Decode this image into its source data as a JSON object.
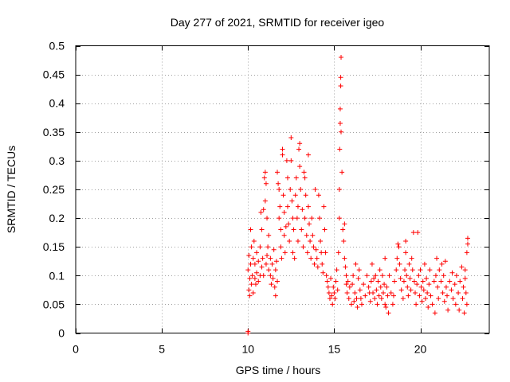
{
  "chart_data": {
    "type": "scatter",
    "title": "Day 277 of 2021, SRMTID for receiver igeo",
    "xlabel": "GPS time / hours",
    "ylabel": "SRMTID / TECUs",
    "xlim": [
      0,
      24
    ],
    "ylim": [
      0,
      0.5
    ],
    "xticks": [
      0,
      5,
      10,
      15,
      20
    ],
    "xtick_labels": [
      "0",
      "5",
      "10",
      "15",
      "20"
    ],
    "yticks": [
      0,
      0.05,
      0.1,
      0.15,
      0.2,
      0.25,
      0.3,
      0.35,
      0.4,
      0.45,
      0.5
    ],
    "ytick_labels": [
      "0",
      "0.05",
      "0.1",
      "0.15",
      "0.2",
      "0.25",
      "0.3",
      "0.35",
      "0.4",
      "0.45",
      "0.5"
    ],
    "grid": true,
    "marker": "+",
    "marker_color": "#ff0000",
    "series": [
      {
        "name": "SRMTID",
        "points": [
          [
            10.0,
            0.0
          ],
          [
            10.0,
            0.003
          ],
          [
            10.0,
            0.11
          ],
          [
            10.05,
            0.075
          ],
          [
            10.05,
            0.135
          ],
          [
            10.1,
            0.065
          ],
          [
            10.1,
            0.095
          ],
          [
            10.15,
            0.18
          ],
          [
            10.15,
            0.12
          ],
          [
            10.2,
            0.085
          ],
          [
            10.2,
            0.15
          ],
          [
            10.25,
            0.1
          ],
          [
            10.3,
            0.07
          ],
          [
            10.3,
            0.13
          ],
          [
            10.35,
            0.16
          ],
          [
            10.4,
            0.095
          ],
          [
            10.4,
            0.12
          ],
          [
            10.45,
            0.085
          ],
          [
            10.5,
            0.14
          ],
          [
            10.5,
            0.105
          ],
          [
            10.6,
            0.09
          ],
          [
            10.6,
            0.125
          ],
          [
            10.7,
            0.1
          ],
          [
            10.7,
            0.15
          ],
          [
            10.75,
            0.21
          ],
          [
            10.8,
            0.115
          ],
          [
            10.8,
            0.18
          ],
          [
            10.85,
            0.13
          ],
          [
            10.9,
            0.215
          ],
          [
            10.9,
            0.1
          ],
          [
            10.95,
            0.27
          ],
          [
            11.0,
            0.28
          ],
          [
            11.0,
            0.23
          ],
          [
            11.05,
            0.26
          ],
          [
            11.05,
            0.12
          ],
          [
            11.1,
            0.2
          ],
          [
            11.1,
            0.135
          ],
          [
            11.15,
            0.15
          ],
          [
            11.2,
            0.11
          ],
          [
            11.2,
            0.17
          ],
          [
            11.3,
            0.1
          ],
          [
            11.3,
            0.13
          ],
          [
            11.35,
            0.085
          ],
          [
            11.4,
            0.12
          ],
          [
            11.45,
            0.095
          ],
          [
            11.5,
            0.145
          ],
          [
            11.55,
            0.08
          ],
          [
            11.6,
            0.11
          ],
          [
            11.6,
            0.065
          ],
          [
            11.65,
            0.125
          ],
          [
            11.7,
            0.09
          ],
          [
            11.7,
            0.28
          ],
          [
            11.75,
            0.26
          ],
          [
            11.8,
            0.25
          ],
          [
            11.8,
            0.2
          ],
          [
            11.85,
            0.22
          ],
          [
            11.9,
            0.18
          ],
          [
            11.9,
            0.15
          ],
          [
            11.95,
            0.13
          ],
          [
            12.0,
            0.31
          ],
          [
            12.0,
            0.32
          ],
          [
            12.05,
            0.24
          ],
          [
            12.1,
            0.21
          ],
          [
            12.1,
            0.17
          ],
          [
            12.15,
            0.14
          ],
          [
            12.2,
            0.185
          ],
          [
            12.25,
            0.3
          ],
          [
            12.3,
            0.27
          ],
          [
            12.3,
            0.22
          ],
          [
            12.35,
            0.19
          ],
          [
            12.4,
            0.16
          ],
          [
            12.45,
            0.25
          ],
          [
            12.5,
            0.34
          ],
          [
            12.5,
            0.3
          ],
          [
            12.55,
            0.23
          ],
          [
            12.6,
            0.2
          ],
          [
            12.6,
            0.14
          ],
          [
            12.65,
            0.18
          ],
          [
            12.7,
            0.13
          ],
          [
            12.75,
            0.24
          ],
          [
            12.8,
            0.27
          ],
          [
            12.85,
            0.2
          ],
          [
            12.9,
            0.16
          ],
          [
            12.9,
            0.22
          ],
          [
            12.95,
            0.32
          ],
          [
            13.0,
            0.33
          ],
          [
            13.0,
            0.29
          ],
          [
            13.05,
            0.25
          ],
          [
            13.1,
            0.18
          ],
          [
            13.15,
            0.215
          ],
          [
            13.2,
            0.15
          ],
          [
            13.25,
            0.28
          ],
          [
            13.3,
            0.27
          ],
          [
            13.3,
            0.2
          ],
          [
            13.35,
            0.24
          ],
          [
            13.4,
            0.17
          ],
          [
            13.45,
            0.14
          ],
          [
            13.5,
            0.31
          ],
          [
            13.5,
            0.22
          ],
          [
            13.55,
            0.19
          ],
          [
            13.6,
            0.16
          ],
          [
            13.65,
            0.13
          ],
          [
            13.7,
            0.2
          ],
          [
            13.75,
            0.17
          ],
          [
            13.8,
            0.15
          ],
          [
            13.85,
            0.12
          ],
          [
            13.9,
            0.25
          ],
          [
            13.95,
            0.145
          ],
          [
            14.0,
            0.13
          ],
          [
            14.05,
            0.115
          ],
          [
            14.1,
            0.24
          ],
          [
            14.15,
            0.2
          ],
          [
            14.2,
            0.16
          ],
          [
            14.25,
            0.14
          ],
          [
            14.3,
            0.12
          ],
          [
            14.35,
            0.105
          ],
          [
            14.4,
            0.22
          ],
          [
            14.45,
            0.18
          ],
          [
            14.5,
            0.14
          ],
          [
            14.55,
            0.1
          ],
          [
            14.6,
            0.09
          ],
          [
            14.65,
            0.08
          ],
          [
            14.7,
            0.07
          ],
          [
            14.75,
            0.06
          ],
          [
            14.8,
            0.095
          ],
          [
            14.85,
            0.065
          ],
          [
            14.9,
            0.05
          ],
          [
            14.95,
            0.08
          ],
          [
            15.0,
            0.07
          ],
          [
            15.05,
            0.06
          ],
          [
            15.1,
            0.09
          ],
          [
            15.15,
            0.11
          ],
          [
            15.2,
            0.075
          ],
          [
            15.25,
            0.14
          ],
          [
            15.3,
            0.2
          ],
          [
            15.3,
            0.25
          ],
          [
            15.32,
            0.32
          ],
          [
            15.35,
            0.365
          ],
          [
            15.35,
            0.39
          ],
          [
            15.38,
            0.43
          ],
          [
            15.38,
            0.445
          ],
          [
            15.4,
            0.48
          ],
          [
            15.4,
            0.35
          ],
          [
            15.45,
            0.28
          ],
          [
            15.5,
            0.18
          ],
          [
            15.55,
            0.16
          ],
          [
            15.6,
            0.13
          ],
          [
            15.6,
            0.19
          ],
          [
            15.65,
            0.115
          ],
          [
            15.7,
            0.1
          ],
          [
            15.7,
            0.085
          ],
          [
            15.75,
            0.07
          ],
          [
            15.8,
            0.09
          ],
          [
            15.85,
            0.06
          ],
          [
            15.9,
            0.08
          ],
          [
            16.0,
            0.05
          ],
          [
            16.1,
            0.1
          ],
          [
            16.2,
            0.07
          ],
          [
            16.3,
            0.06
          ],
          [
            16.4,
            0.095
          ],
          [
            16.5,
            0.075
          ],
          [
            16.6,
            0.05
          ],
          [
            16.7,
            0.085
          ],
          [
            16.8,
            0.065
          ],
          [
            16.9,
            0.1
          ],
          [
            17.0,
            0.08
          ],
          [
            17.05,
            0.07
          ],
          [
            17.1,
            0.055
          ],
          [
            17.15,
            0.09
          ],
          [
            17.2,
            0.12
          ],
          [
            17.25,
            0.07
          ],
          [
            17.3,
            0.095
          ],
          [
            17.35,
            0.06
          ],
          [
            17.4,
            0.1
          ],
          [
            17.45,
            0.075
          ],
          [
            17.5,
            0.05
          ],
          [
            17.55,
            0.09
          ],
          [
            17.6,
            0.065
          ],
          [
            17.65,
            0.11
          ],
          [
            17.7,
            0.08
          ],
          [
            17.75,
            0.06
          ],
          [
            17.8,
            0.1
          ],
          [
            17.85,
            0.07
          ],
          [
            17.9,
            0.085
          ],
          [
            17.95,
            0.05
          ],
          [
            18.0,
            0.045
          ],
          [
            18.05,
            0.08
          ],
          [
            18.1,
            0.065
          ],
          [
            18.15,
            0.035
          ],
          [
            18.2,
            0.1
          ],
          [
            18.3,
            0.07
          ],
          [
            18.4,
            0.05
          ],
          [
            18.5,
            0.09
          ],
          [
            18.6,
            0.11
          ],
          [
            18.65,
            0.13
          ],
          [
            18.7,
            0.155
          ],
          [
            18.75,
            0.15
          ],
          [
            18.8,
            0.12
          ],
          [
            18.85,
            0.095
          ],
          [
            18.9,
            0.075
          ],
          [
            19.0,
            0.06
          ],
          [
            19.05,
            0.09
          ],
          [
            19.1,
            0.11
          ],
          [
            19.15,
            0.14
          ],
          [
            19.2,
            0.1
          ],
          [
            19.25,
            0.08
          ],
          [
            19.3,
            0.065
          ],
          [
            19.35,
            0.12
          ],
          [
            19.4,
            0.095
          ],
          [
            19.45,
            0.075
          ],
          [
            19.5,
            0.13
          ],
          [
            19.55,
            0.11
          ],
          [
            19.6,
            0.175
          ],
          [
            19.65,
            0.09
          ],
          [
            19.7,
            0.07
          ],
          [
            19.75,
            0.05
          ],
          [
            19.8,
            0.085
          ],
          [
            19.85,
            0.175
          ],
          [
            19.9,
            0.1
          ],
          [
            19.95,
            0.065
          ],
          [
            20.0,
            0.11
          ],
          [
            20.05,
            0.08
          ],
          [
            20.1,
            0.055
          ],
          [
            20.15,
            0.09
          ],
          [
            20.2,
            0.075
          ],
          [
            20.3,
            0.06
          ],
          [
            20.35,
            0.095
          ],
          [
            20.4,
            0.07
          ],
          [
            20.45,
            0.045
          ],
          [
            20.5,
            0.085
          ],
          [
            20.55,
            0.11
          ],
          [
            20.6,
            0.065
          ],
          [
            20.7,
            0.05
          ],
          [
            20.8,
            0.09
          ],
          [
            20.85,
            0.035
          ],
          [
            20.9,
            0.1
          ],
          [
            20.95,
            0.13
          ],
          [
            21.0,
            0.08
          ],
          [
            21.05,
            0.06
          ],
          [
            21.1,
            0.11
          ],
          [
            21.2,
            0.09
          ],
          [
            21.3,
            0.07
          ],
          [
            21.35,
            0.1
          ],
          [
            21.4,
            0.055
          ],
          [
            21.5,
            0.08
          ],
          [
            21.55,
            0.065
          ],
          [
            21.6,
            0.04
          ],
          [
            21.7,
            0.09
          ],
          [
            21.8,
            0.075
          ],
          [
            21.85,
            0.105
          ],
          [
            21.9,
            0.06
          ],
          [
            22.0,
            0.085
          ],
          [
            22.05,
            0.05
          ],
          [
            22.1,
            0.1
          ],
          [
            22.2,
            0.07
          ],
          [
            22.25,
            0.04
          ],
          [
            22.3,
            0.09
          ],
          [
            22.4,
            0.115
          ],
          [
            22.45,
            0.06
          ],
          [
            22.5,
            0.08
          ],
          [
            22.55,
            0.035
          ],
          [
            22.6,
            0.095
          ],
          [
            22.65,
            0.07
          ],
          [
            22.7,
            0.14
          ],
          [
            22.75,
            0.165
          ],
          [
            22.75,
            0.155
          ],
          [
            22.7,
            0.05
          ],
          [
            22.6,
            0.11
          ],
          [
            21.45,
            0.125
          ],
          [
            21.25,
            0.12
          ],
          [
            20.25,
            0.12
          ],
          [
            19.15,
            0.16
          ],
          [
            18.45,
            0.065
          ],
          [
            17.95,
            0.13
          ],
          [
            16.05,
            0.085
          ],
          [
            16.15,
            0.055
          ],
          [
            16.25,
            0.12
          ],
          [
            16.35,
            0.045
          ],
          [
            16.45,
            0.11
          ],
          [
            16.55,
            0.06
          ]
        ]
      }
    ]
  }
}
